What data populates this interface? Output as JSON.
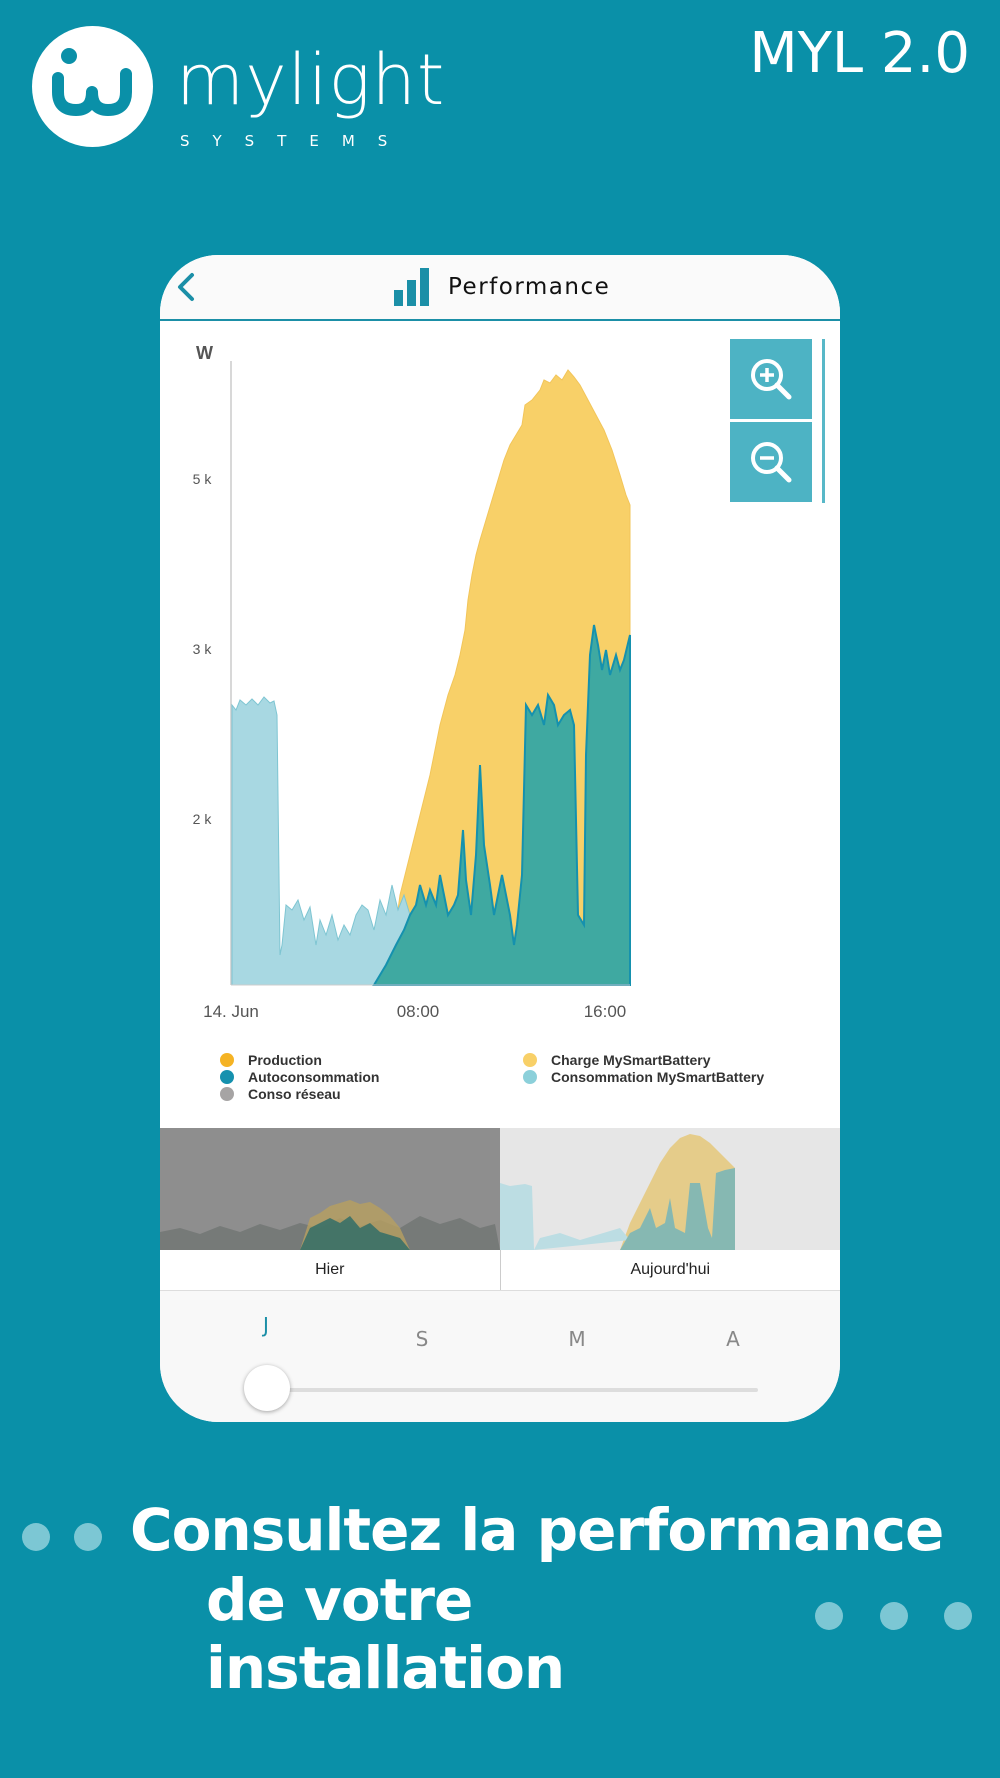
{
  "brand": {
    "name": "mylight",
    "tagline": "SYSTEMS",
    "version": "MYL 2.0"
  },
  "screen": {
    "back_icon": "chevron-left-icon",
    "title_icon": "bar-chart-icon",
    "title": "Performance"
  },
  "chart": {
    "y_unit": "W",
    "y_ticks": [
      "5 k",
      "3 k",
      "2 k"
    ],
    "x_ticks": [
      "14. Jun",
      "08:00",
      "16:00"
    ],
    "zoom_in_icon": "zoom-in-icon",
    "zoom_out_icon": "zoom-out-icon"
  },
  "legend": {
    "left": [
      {
        "label": "Production",
        "color": "#f5b324"
      },
      {
        "label": "Autoconsommation",
        "color": "#1591ae"
      },
      {
        "label": "Conso réseau",
        "color": "#a6a4a4"
      }
    ],
    "right": [
      {
        "label": "Charge MySmartBattery",
        "color": "#f8d068"
      },
      {
        "label": "Consommation MySmartBattery",
        "color": "#8cd0da"
      }
    ]
  },
  "navigator": {
    "left_label": "Hier",
    "right_label": "Aujourd'hui"
  },
  "period_tabs": [
    "J",
    "S",
    "M",
    "A"
  ],
  "selected_period": "J",
  "headline": {
    "line1": "Consultez la performance",
    "line2": "de votre installation"
  },
  "colors": {
    "background": "#0a90a8",
    "production": "#f8d068",
    "autoconsommation": "#3fa9a1",
    "battery": "#a8d8e2",
    "accent": "#1b8fa7"
  }
}
